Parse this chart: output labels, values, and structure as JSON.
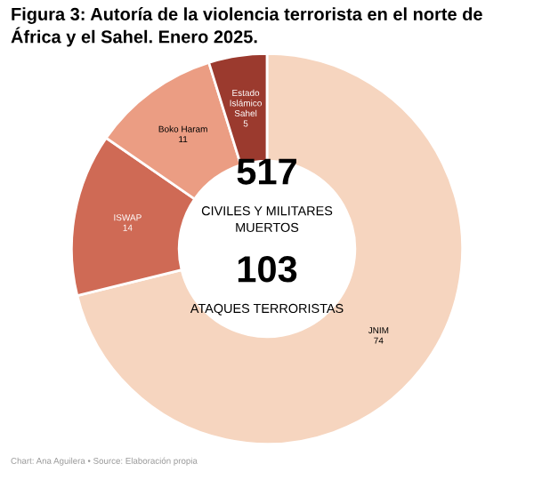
{
  "chart_data": {
    "type": "donut",
    "title": "Figura 3: Autoría de la violencia terrorista en el norte de África y el Sahel. Enero 2025.",
    "categories": [
      "JNIM",
      "ISWAP",
      "Boko Haram",
      "Estado Islámico Sahel"
    ],
    "values": [
      74,
      14,
      11,
      5
    ],
    "colors": [
      "#f6d5bf",
      "#cf6a55",
      "#eb9d83",
      "#9b3a2e"
    ],
    "data_labels": true,
    "legend": false,
    "annotations": [
      "517",
      "CIVILES Y MILITARES MUERTOS",
      "103",
      "ATAQUES TERRORISTAS",
      "Chart: Ana Aguilera • Source: Elaboración propia"
    ]
  }
}
